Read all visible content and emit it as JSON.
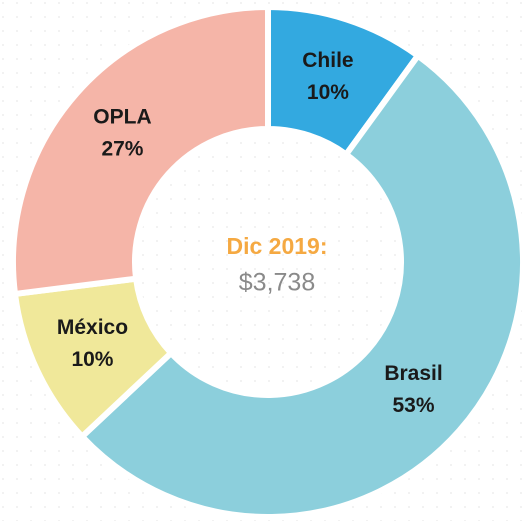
{
  "chart_data": {
    "type": "pie",
    "categories": [
      "Chile",
      "Brasil",
      "México",
      "OPLA"
    ],
    "values": [
      10,
      53,
      10,
      27
    ],
    "value_labels": [
      "10%",
      "53%",
      "10%",
      "27%"
    ],
    "colors": [
      "#33a9e0",
      "#8ccfdc",
      "#f0e89a",
      "#f5b5a8"
    ],
    "annotations": [
      "Dic 2019:",
      "$3,738"
    ]
  }
}
